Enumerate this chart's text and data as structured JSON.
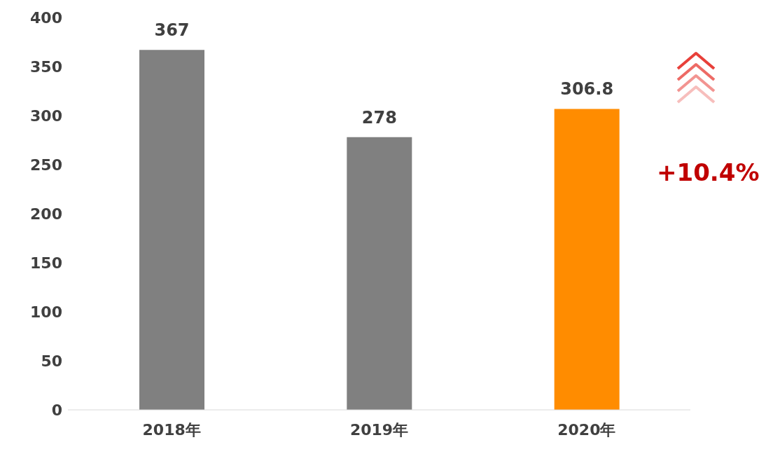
{
  "chart_data": {
    "type": "bar",
    "categories": [
      "2018年",
      "2019年",
      "2020年"
    ],
    "values": [
      367,
      278,
      306.8
    ],
    "colors": [
      "#808080",
      "#808080",
      "#ff8c00"
    ],
    "ylim": [
      0,
      400
    ],
    "yticks": [
      0,
      50,
      100,
      150,
      200,
      250,
      300,
      350,
      400
    ],
    "data_labels": true,
    "annotations": [
      "+10.4%"
    ]
  }
}
